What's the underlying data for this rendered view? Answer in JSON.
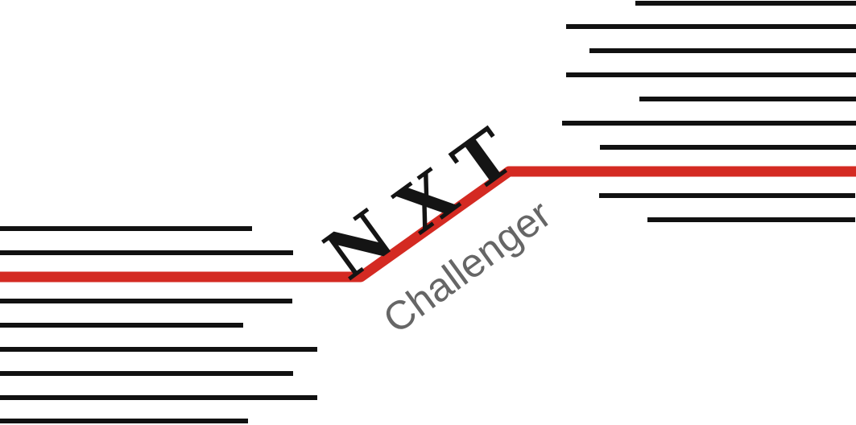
{
  "logo": {
    "letters": [
      "N",
      "X",
      "T"
    ],
    "tagline": "Challenger",
    "colors": {
      "stripes": "#111111",
      "line": "#d42a22",
      "letters": "#141414",
      "tagline": "#666666",
      "background": "#ffffff"
    }
  }
}
